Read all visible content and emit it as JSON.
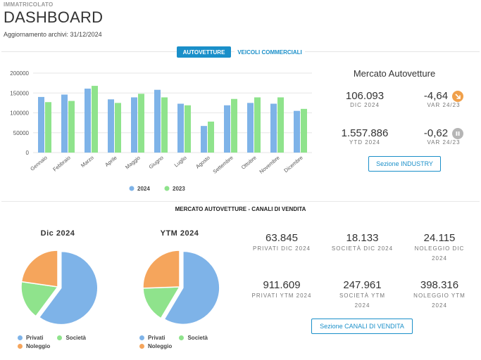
{
  "header": {
    "brand": "IMMATRICOLATO",
    "title": "DASHBOARD",
    "update": "Aggiornamento archivi: 31/12/2024"
  },
  "tabs": [
    {
      "label": "AUTOVETTURE",
      "active": true
    },
    {
      "label": "VEICOLI COMMERCIALI",
      "active": false
    }
  ],
  "colors": {
    "series_2024": "#7eb3e8",
    "series_2023": "#8fe38c",
    "privati": "#7eb3e8",
    "societa": "#8fe38c",
    "noleggio": "#f5a55c",
    "accent": "#1a8fc9",
    "badge_down": "#f0a04b",
    "badge_neutral": "#b5b5b5"
  },
  "chart_data": [
    {
      "type": "bar",
      "categories": [
        "Gennaio",
        "Febbraio",
        "Marzo",
        "Aprile",
        "Maggio",
        "Giugno",
        "Luglio",
        "Agosto",
        "Settembre",
        "Ottobre",
        "Novembre",
        "Dicembre"
      ],
      "series": [
        {
          "name": "2024",
          "values": [
            140000,
            146000,
            161000,
            134000,
            139000,
            158000,
            123000,
            67000,
            119000,
            125000,
            123000,
            105000
          ]
        },
        {
          "name": "2023",
          "values": [
            127000,
            130000,
            168000,
            125000,
            148000,
            139000,
            119000,
            78000,
            135000,
            139000,
            139000,
            110000
          ]
        }
      ],
      "yticks": [
        "200000",
        "150000",
        "100000",
        "50000",
        "0"
      ],
      "ylim": [
        0,
        200000
      ],
      "legend_position": "bottom"
    },
    {
      "type": "pie",
      "title": "Dic 2024",
      "labels": [
        "Privati",
        "Società",
        "Noleggio"
      ],
      "values": [
        63845,
        18133,
        24115
      ]
    },
    {
      "type": "pie",
      "title": "YTM 2024",
      "labels": [
        "Privati",
        "Società",
        "Noleggio"
      ],
      "values": [
        911609,
        247961,
        398316
      ]
    }
  ],
  "market": {
    "title": "Mercato Autovetture",
    "month_value": "106.093",
    "month_label": "DIC 2024",
    "month_var": "-4,64",
    "month_var_label": "VAR 24/23",
    "ytd_value": "1.557.886",
    "ytd_label": "YTD 2024",
    "ytd_var": "-0,62",
    "ytd_var_label": "VAR 24/23",
    "button": "Sezione INDUSTRY"
  },
  "channels": {
    "section_title": "MERCATO AUTOVETTURE - CANALI DI VENDITA",
    "pie1_title": "Dic 2024",
    "pie2_title": "YTM 2024",
    "legend": {
      "privati": "Privati",
      "societa": "Società",
      "noleggio": "Noleggio"
    },
    "privati_dic": "63.845",
    "privati_dic_label": "PRIVATI DIC 2024",
    "societa_dic": "18.133",
    "societa_dic_label": "SOCIETÀ DIC 2024",
    "noleggio_dic": "24.115",
    "noleggio_dic_label": "NOLEGGIO DIC 2024",
    "privati_ytm": "911.609",
    "privati_ytm_label": "PRIVATI YTM 2024",
    "societa_ytm": "247.961",
    "societa_ytm_label": "SOCIETÀ YTM 2024",
    "noleggio_ytm": "398.316",
    "noleggio_ytm_label": "NOLEGGIO YTM 2024",
    "button": "Sezione CANALI DI VENDITA"
  }
}
